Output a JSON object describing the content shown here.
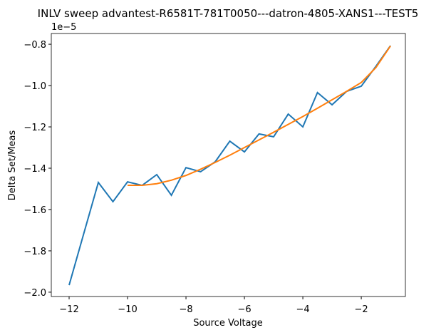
{
  "chart_data": {
    "type": "line",
    "title": "INLV sweep advantest-R6581T-781T0050---datron-4805-XANS1---TEST5",
    "x_label": "Source Voltage",
    "y_label": "Delta Set/Meas",
    "y_offset_label": "1e−5",
    "xlim": [
      -12.61,
      -0.49
    ],
    "ylim": [
      -2.021,
      -0.748
    ],
    "xticks": [
      {
        "value": -12,
        "label": "−12"
      },
      {
        "value": -10,
        "label": "−10"
      },
      {
        "value": -8,
        "label": "−8"
      },
      {
        "value": -6,
        "label": "−6"
      },
      {
        "value": -4,
        "label": "−4"
      },
      {
        "value": -2,
        "label": "−2"
      }
    ],
    "yticks": [
      {
        "value": -2.0,
        "label": "−2.0"
      },
      {
        "value": -1.8,
        "label": "−1.8"
      },
      {
        "value": -1.6,
        "label": "−1.6"
      },
      {
        "value": -1.4,
        "label": "−1.4"
      },
      {
        "value": -1.2,
        "label": "−1.2"
      },
      {
        "value": -1.0,
        "label": "−1.0"
      },
      {
        "value": -0.8,
        "label": "−0.8"
      }
    ],
    "grid": false,
    "series": [
      {
        "color": "#1f77b4",
        "x": [
          -12,
          -11.5,
          -11,
          -10.5,
          -10,
          -9.5,
          -9,
          -8.5,
          -8,
          -7.5,
          -7,
          -6.5,
          -6,
          -5.5,
          -5,
          -4.5,
          -4,
          -3.5,
          -3,
          -2.5,
          -2,
          -1.5,
          -1
        ],
        "values": [
          -1.966,
          -1.717,
          -1.469,
          -1.562,
          -1.466,
          -1.483,
          -1.431,
          -1.531,
          -1.397,
          -1.417,
          -1.369,
          -1.269,
          -1.321,
          -1.234,
          -1.248,
          -1.138,
          -1.2,
          -1.034,
          -1.093,
          -1.028,
          -1.003,
          -0.907,
          -0.807
        ]
      },
      {
        "color": "#ff7f0e",
        "x": [
          -10,
          -9.5,
          -9,
          -8.5,
          -8,
          -7.5,
          -7,
          -6.5,
          -6,
          -5.5,
          -5,
          -4.5,
          -4,
          -3.5,
          -3,
          -2.5,
          -2,
          -1.5,
          -1
        ],
        "values": [
          -1.483,
          -1.483,
          -1.475,
          -1.458,
          -1.435,
          -1.405,
          -1.372,
          -1.337,
          -1.3,
          -1.263,
          -1.226,
          -1.188,
          -1.15,
          -1.11,
          -1.069,
          -1.028,
          -0.985,
          -0.913,
          -0.808
        ]
      }
    ]
  }
}
